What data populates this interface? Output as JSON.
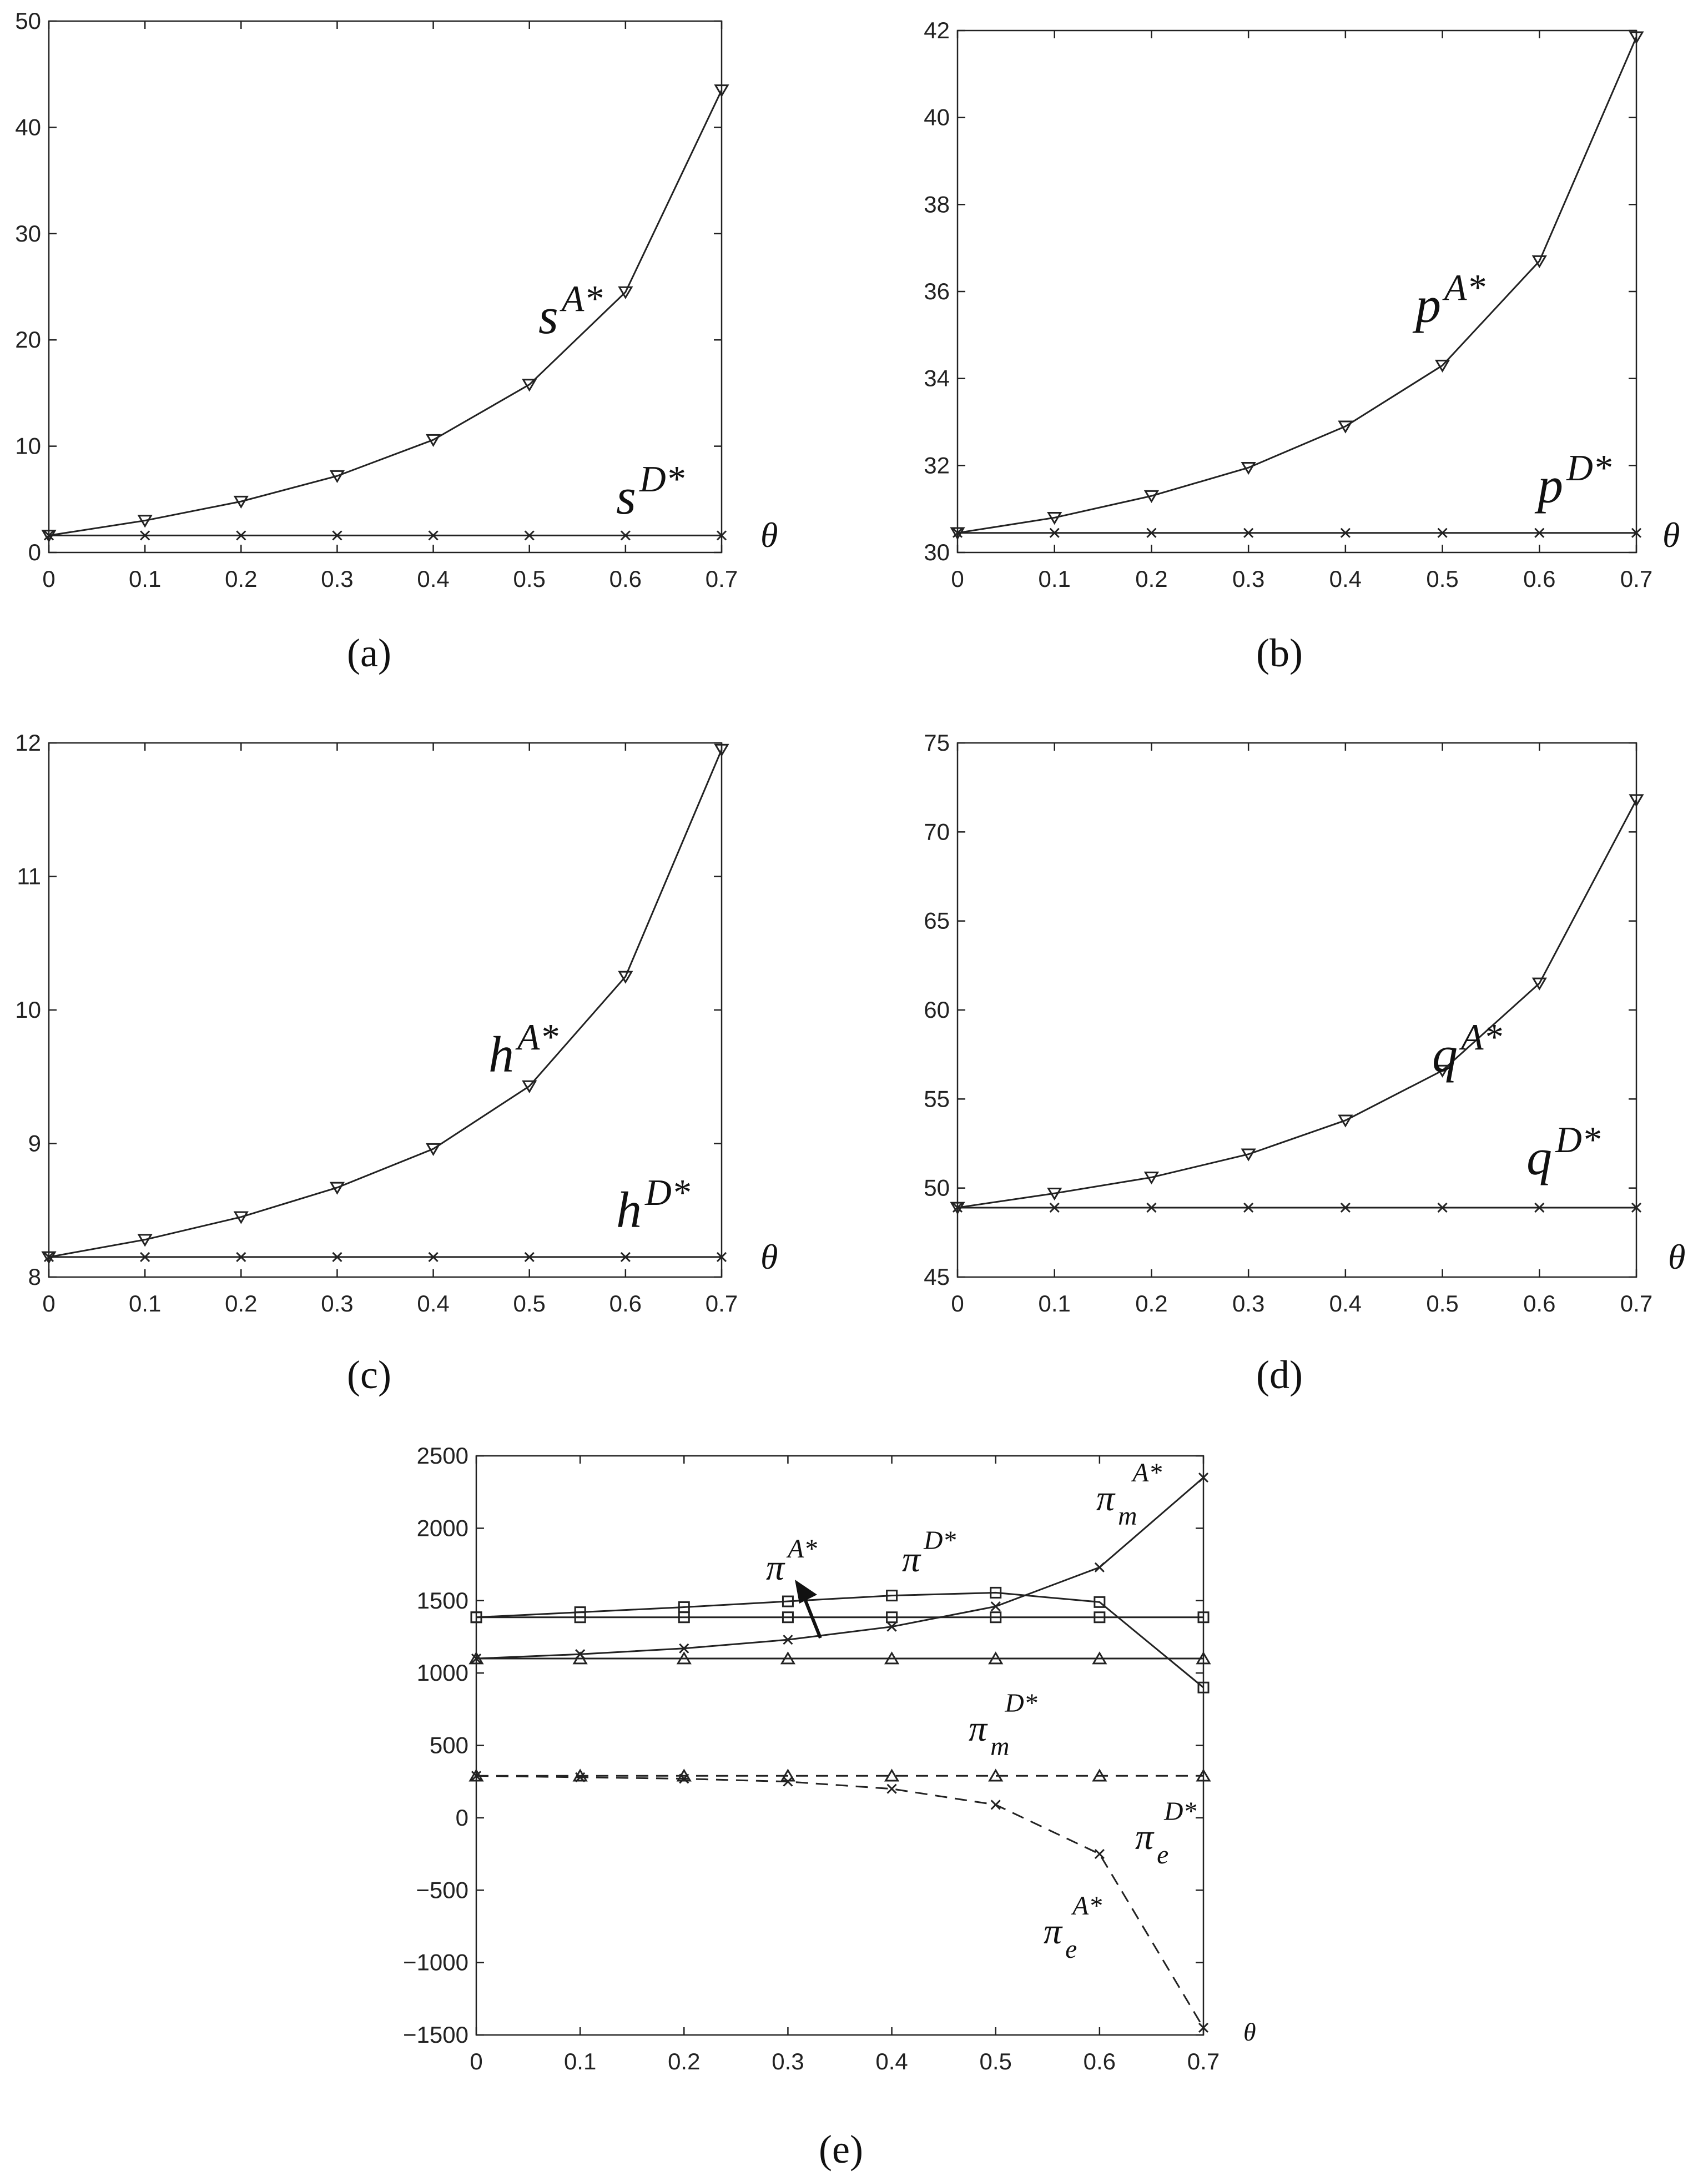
{
  "chart_data": [
    {
      "id": "a",
      "type": "line",
      "caption": "(a)",
      "x": [
        0,
        0.1,
        0.2,
        0.3,
        0.4,
        0.5,
        0.6,
        0.7
      ],
      "xlim": [
        0,
        0.7
      ],
      "ylim": [
        0,
        50
      ],
      "xticks": [
        "0",
        "0.1",
        "0.2",
        "0.3",
        "0.4",
        "0.5",
        "0.6",
        "0.7"
      ],
      "yticks": [
        "0",
        "10",
        "20",
        "30",
        "40",
        "50"
      ],
      "xlabel": "θ",
      "series": [
        {
          "name": "s^{A*}",
          "label_base": "s",
          "label_sup": "A*",
          "marker": "triangle-down",
          "dash": "solid",
          "values": [
            1.6,
            3.0,
            4.8,
            7.2,
            10.6,
            15.8,
            24.5,
            43.5
          ]
        },
        {
          "name": "s^{D*}",
          "label_base": "s",
          "label_sup": "D*",
          "marker": "x",
          "dash": "solid",
          "values": [
            1.6,
            1.6,
            1.6,
            1.6,
            1.6,
            1.6,
            1.6,
            1.6
          ]
        }
      ]
    },
    {
      "id": "b",
      "type": "line",
      "caption": "(b)",
      "x": [
        0,
        0.1,
        0.2,
        0.3,
        0.4,
        0.5,
        0.6,
        0.7
      ],
      "xlim": [
        0,
        0.7
      ],
      "ylim": [
        30,
        42
      ],
      "xticks": [
        "0",
        "0.1",
        "0.2",
        "0.3",
        "0.4",
        "0.5",
        "0.6",
        "0.7"
      ],
      "yticks": [
        "30",
        "32",
        "34",
        "36",
        "38",
        "40",
        "42"
      ],
      "xlabel": "θ",
      "series": [
        {
          "name": "p^{A*}",
          "label_base": "p",
          "label_sup": "A*",
          "marker": "triangle-down",
          "dash": "solid",
          "values": [
            30.45,
            30.8,
            31.3,
            31.95,
            32.9,
            34.3,
            36.7,
            41.85
          ]
        },
        {
          "name": "p^{D*}",
          "label_base": "p",
          "label_sup": "D*",
          "marker": "x",
          "dash": "solid",
          "values": [
            30.45,
            30.45,
            30.45,
            30.45,
            30.45,
            30.45,
            30.45,
            30.45
          ]
        }
      ]
    },
    {
      "id": "c",
      "type": "line",
      "caption": "(c)",
      "x": [
        0,
        0.1,
        0.2,
        0.3,
        0.4,
        0.5,
        0.6,
        0.7
      ],
      "xlim": [
        0,
        0.7
      ],
      "ylim": [
        8,
        12
      ],
      "xticks": [
        "0",
        "0.1",
        "0.2",
        "0.3",
        "0.4",
        "0.5",
        "0.6",
        "0.7"
      ],
      "yticks": [
        "8",
        "9",
        "10",
        "11",
        "12"
      ],
      "xlabel": "θ",
      "series": [
        {
          "name": "h^{A*}",
          "label_base": "h",
          "label_sup": "A*",
          "marker": "triangle-down",
          "dash": "solid",
          "values": [
            8.15,
            8.28,
            8.45,
            8.67,
            8.96,
            9.43,
            10.25,
            11.95
          ]
        },
        {
          "name": "h^{D*}",
          "label_base": "h",
          "label_sup": "D*",
          "marker": "x",
          "dash": "solid",
          "values": [
            8.15,
            8.15,
            8.15,
            8.15,
            8.15,
            8.15,
            8.15,
            8.15
          ]
        }
      ]
    },
    {
      "id": "d",
      "type": "line",
      "caption": "(d)",
      "x": [
        0,
        0.1,
        0.2,
        0.3,
        0.4,
        0.5,
        0.6,
        0.7
      ],
      "xlim": [
        0,
        0.7
      ],
      "ylim": [
        45,
        75
      ],
      "xticks": [
        "0",
        "0.1",
        "0.2",
        "0.3",
        "0.4",
        "0.5",
        "0.6",
        "0.7"
      ],
      "yticks": [
        "45",
        "50",
        "55",
        "60",
        "65",
        "70",
        "75"
      ],
      "xlabel": "θ",
      "series": [
        {
          "name": "q^{A*}",
          "label_base": "q",
          "label_sup": "A*",
          "marker": "triangle-down",
          "dash": "solid",
          "values": [
            48.9,
            49.7,
            50.6,
            51.9,
            53.8,
            56.6,
            61.5,
            71.8
          ]
        },
        {
          "name": "q^{D*}",
          "label_base": "q",
          "label_sup": "D*",
          "marker": "x",
          "dash": "solid",
          "values": [
            48.9,
            48.9,
            48.9,
            48.9,
            48.9,
            48.9,
            48.9,
            48.9
          ]
        }
      ]
    },
    {
      "id": "e",
      "type": "line",
      "caption": "(e)",
      "x": [
        0,
        0.1,
        0.2,
        0.3,
        0.4,
        0.5,
        0.6,
        0.7
      ],
      "xlim": [
        0,
        0.7
      ],
      "ylim": [
        -1500,
        2500
      ],
      "xticks": [
        "0",
        "0.1",
        "0.2",
        "0.3",
        "0.4",
        "0.5",
        "0.6",
        "0.7"
      ],
      "yticks": [
        "−1500",
        "−1000",
        "−500",
        "0",
        "500",
        "1000",
        "1500",
        "2000",
        "2500"
      ],
      "xlabel": "θ",
      "series": [
        {
          "name": "π^{A*}",
          "label_base": "π",
          "label_sub": "",
          "label_sup": "A*",
          "marker": "square",
          "dash": "solid",
          "values": [
            1385,
            1420,
            1455,
            1495,
            1535,
            1555,
            1490,
            900
          ]
        },
        {
          "name": "π^{D*}",
          "label_base": "π",
          "label_sub": "",
          "label_sup": "D*",
          "marker": "square",
          "dash": "solid",
          "values": [
            1385,
            1385,
            1385,
            1385,
            1385,
            1385,
            1385,
            1385
          ]
        },
        {
          "name": "π_m^{A*}",
          "label_base": "π",
          "label_sub": "m",
          "label_sup": "A*",
          "marker": "x",
          "dash": "solid",
          "values": [
            1100,
            1130,
            1170,
            1230,
            1320,
            1460,
            1730,
            2350
          ]
        },
        {
          "name": "π_m^{D*}",
          "label_base": "π",
          "label_sub": "m",
          "label_sup": "D*",
          "marker": "triangle-up",
          "dash": "solid",
          "values": [
            1100,
            1100,
            1100,
            1100,
            1100,
            1100,
            1100,
            1100
          ]
        },
        {
          "name": "π_e^{D*}",
          "label_base": "π",
          "label_sub": "e",
          "label_sup": "D*",
          "marker": "triangle-up",
          "dash": "dashed",
          "values": [
            290,
            290,
            290,
            290,
            290,
            290,
            290,
            290
          ]
        },
        {
          "name": "π_e^{A*}",
          "label_base": "π",
          "label_sub": "e",
          "label_sup": "A*",
          "marker": "x",
          "dash": "dashed",
          "values": [
            290,
            280,
            270,
            250,
            200,
            90,
            -250,
            -1450
          ]
        }
      ]
    }
  ]
}
